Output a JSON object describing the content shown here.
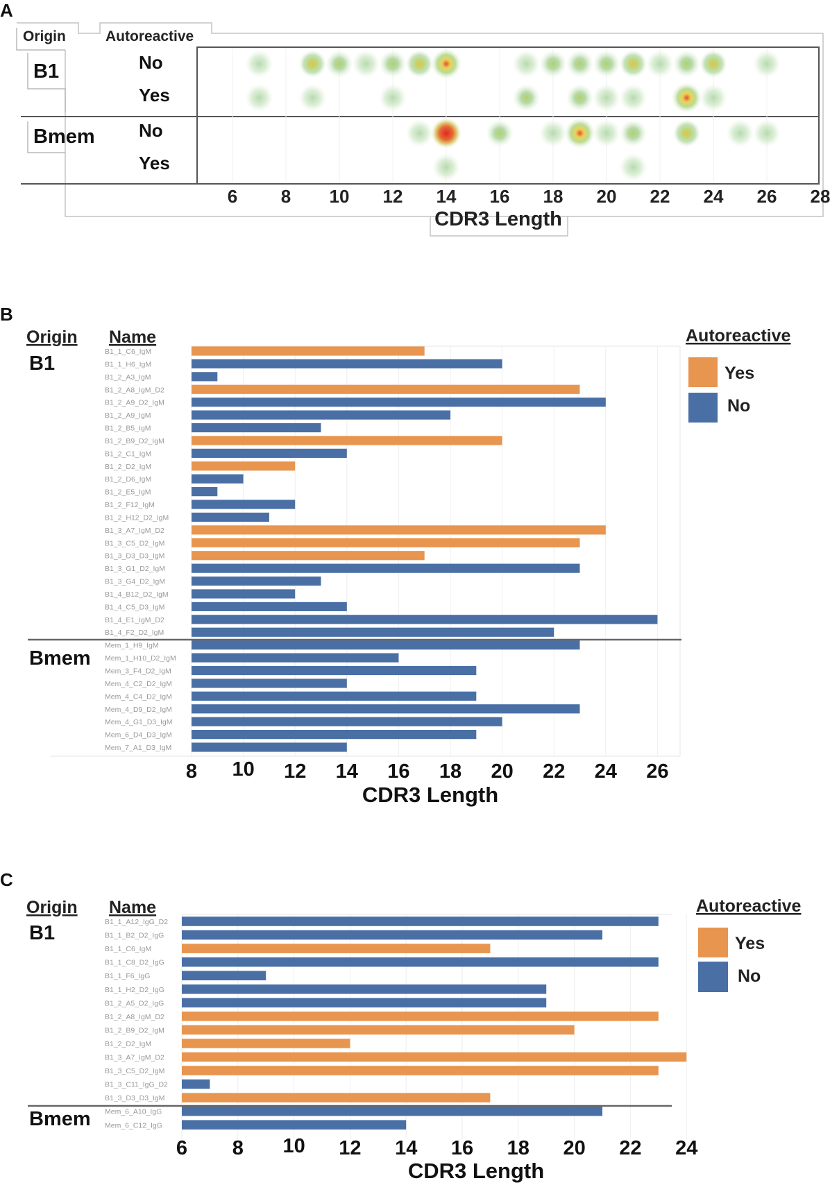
{
  "panels": {
    "A": {
      "letter": "A",
      "headers": {
        "origin": "Origin",
        "autoreactive": "Autoreactive"
      },
      "chart_data": {
        "type": "heatmap",
        "xlabel": "CDR3 Length",
        "xlim": [
          5,
          28
        ],
        "x_ticks": [
          6,
          8,
          10,
          12,
          14,
          16,
          18,
          20,
          22,
          24,
          26,
          28
        ],
        "groups": [
          {
            "origin": "B1",
            "rows": [
              {
                "label": "No",
                "x": [
                  7,
                  9,
                  10,
                  11,
                  12,
                  13,
                  14,
                  17,
                  18,
                  19,
                  20,
                  21,
                  22,
                  23,
                  24,
                  26
                ],
                "intensity": [
                  1,
                  3,
                  2,
                  1,
                  2,
                  3,
                  4,
                  1,
                  2,
                  2,
                  2,
                  3,
                  1,
                  2,
                  3,
                  1
                ]
              },
              {
                "label": "Yes",
                "x": [
                  7,
                  9,
                  12,
                  17,
                  19,
                  20,
                  21,
                  23,
                  24
                ],
                "intensity": [
                  1,
                  1,
                  1,
                  2,
                  2,
                  1,
                  1,
                  4,
                  1
                ]
              }
            ]
          },
          {
            "origin": "Bmem",
            "rows": [
              {
                "label": "No",
                "x": [
                  13,
                  14,
                  16,
                  18,
                  19,
                  20,
                  21,
                  23,
                  25,
                  26
                ],
                "intensity": [
                  1,
                  5,
                  2,
                  1,
                  4,
                  1,
                  2,
                  3,
                  1,
                  1
                ]
              },
              {
                "label": "Yes",
                "x": [
                  14,
                  21
                ],
                "intensity": [
                  1,
                  1
                ]
              }
            ]
          }
        ]
      }
    },
    "B": {
      "letter": "B",
      "headers": {
        "origin": "Origin",
        "name": "Name"
      },
      "legend": {
        "title": "Autoreactive",
        "yes": "Yes",
        "no": "No"
      },
      "colors": {
        "yes": "#E8954F",
        "no": "#4A6FA5"
      },
      "chart_data": {
        "type": "bar",
        "orientation": "horizontal",
        "xlabel": "CDR3 Length",
        "xlim": [
          8,
          27
        ],
        "x_ticks": [
          8,
          10,
          12,
          14,
          16,
          18,
          20,
          22,
          24,
          26
        ],
        "groups": [
          {
            "origin": "B1",
            "bars": [
              {
                "name": "B1_1_C6_IgM",
                "value": 17,
                "autoreactive": "Yes"
              },
              {
                "name": "B1_1_H6_IgM",
                "value": 20,
                "autoreactive": "No"
              },
              {
                "name": "B1_2_A3_IgM",
                "value": 9,
                "autoreactive": "No"
              },
              {
                "name": "B1_2_A8_IgM_D2",
                "value": 23,
                "autoreactive": "Yes"
              },
              {
                "name": "B1_2_A9_D2_IgM",
                "value": 24,
                "autoreactive": "No"
              },
              {
                "name": "B1_2_A9_IgM",
                "value": 18,
                "autoreactive": "No"
              },
              {
                "name": "B1_2_B5_IgM",
                "value": 13,
                "autoreactive": "No"
              },
              {
                "name": "B1_2_B9_D2_IgM",
                "value": 20,
                "autoreactive": "Yes"
              },
              {
                "name": "B1_2_C1_IgM",
                "value": 14,
                "autoreactive": "No"
              },
              {
                "name": "B1_2_D2_IgM",
                "value": 12,
                "autoreactive": "Yes"
              },
              {
                "name": "B1_2_D6_IgM",
                "value": 10,
                "autoreactive": "No"
              },
              {
                "name": "B1_2_E5_IgM",
                "value": 9,
                "autoreactive": "No"
              },
              {
                "name": "B1_2_F12_IgM",
                "value": 12,
                "autoreactive": "No"
              },
              {
                "name": "B1_2_H12_D2_IgM",
                "value": 11,
                "autoreactive": "No"
              },
              {
                "name": "B1_3_A7_IgM_D2",
                "value": 24,
                "autoreactive": "Yes"
              },
              {
                "name": "B1_3_C5_D2_IgM",
                "value": 23,
                "autoreactive": "Yes"
              },
              {
                "name": "B1_3_D3_D3_IgM",
                "value": 17,
                "autoreactive": "Yes"
              },
              {
                "name": "B1_3_G1_D2_IgM",
                "value": 23,
                "autoreactive": "No"
              },
              {
                "name": "B1_3_G4_D2_IgM",
                "value": 13,
                "autoreactive": "No"
              },
              {
                "name": "B1_4_B12_D2_IgM",
                "value": 12,
                "autoreactive": "No"
              },
              {
                "name": "B1_4_C5_D3_IgM",
                "value": 14,
                "autoreactive": "No"
              },
              {
                "name": "B1_4_E1_IgM_D2",
                "value": 26,
                "autoreactive": "No"
              },
              {
                "name": "B1_4_F2_D2_IgM",
                "value": 22,
                "autoreactive": "No"
              }
            ]
          },
          {
            "origin": "Bmem",
            "bars": [
              {
                "name": "Mem_1_H9_IgM",
                "value": 23,
                "autoreactive": "No"
              },
              {
                "name": "Mem_1_H10_D2_IgM",
                "value": 16,
                "autoreactive": "No"
              },
              {
                "name": "Mem_3_F4_D2_IgM",
                "value": 19,
                "autoreactive": "No"
              },
              {
                "name": "Mem_4_C2_D2_IgM",
                "value": 14,
                "autoreactive": "No"
              },
              {
                "name": "Mem_4_C4_D2_IgM",
                "value": 19,
                "autoreactive": "No"
              },
              {
                "name": "Mem_4_D9_D2_IgM",
                "value": 23,
                "autoreactive": "No"
              },
              {
                "name": "Mem_4_G1_D3_IgM",
                "value": 20,
                "autoreactive": "No"
              },
              {
                "name": "Mem_6_D4_D3_IgM",
                "value": 19,
                "autoreactive": "No"
              },
              {
                "name": "Mem_7_A1_D3_IgM",
                "value": 14,
                "autoreactive": "No"
              }
            ]
          }
        ]
      }
    },
    "C": {
      "letter": "C",
      "headers": {
        "origin": "Origin",
        "name": "Name"
      },
      "legend": {
        "title": "Autoreactive",
        "yes": "Yes",
        "no": "No"
      },
      "colors": {
        "yes": "#E8954F",
        "no": "#4A6FA5"
      },
      "chart_data": {
        "type": "bar",
        "orientation": "horizontal",
        "xlabel": "CDR3 Length",
        "xlim": [
          6,
          24
        ],
        "x_ticks": [
          6,
          8,
          10,
          12,
          14,
          16,
          18,
          20,
          22,
          24
        ],
        "groups": [
          {
            "origin": "B1",
            "bars": [
              {
                "name": "B1_1_A12_IgG_D2",
                "value": 23,
                "autoreactive": "No"
              },
              {
                "name": "B1_1_B2_D2_IgG",
                "value": 21,
                "autoreactive": "No"
              },
              {
                "name": "B1_1_C6_IgM",
                "value": 17,
                "autoreactive": "Yes"
              },
              {
                "name": "B1_1_C8_D2_IgG",
                "value": 23,
                "autoreactive": "No"
              },
              {
                "name": "B1_1_F6_IgG",
                "value": 9,
                "autoreactive": "No"
              },
              {
                "name": "B1_1_H2_D2_IgG",
                "value": 19,
                "autoreactive": "No"
              },
              {
                "name": "B1_2_A5_D2_IgG",
                "value": 19,
                "autoreactive": "No"
              },
              {
                "name": "B1_2_A8_IgM_D2",
                "value": 23,
                "autoreactive": "Yes"
              },
              {
                "name": "B1_2_B9_D2_IgM",
                "value": 20,
                "autoreactive": "Yes"
              },
              {
                "name": "B1_2_D2_IgM",
                "value": 12,
                "autoreactive": "Yes"
              },
              {
                "name": "B1_3_A7_IgM_D2",
                "value": 24,
                "autoreactive": "Yes"
              },
              {
                "name": "B1_3_C5_D2_IgM",
                "value": 23,
                "autoreactive": "Yes"
              },
              {
                "name": "B1_3_C11_IgG_D2",
                "value": 7,
                "autoreactive": "No"
              },
              {
                "name": "B1_3_D3_D3_IgM",
                "value": 17,
                "autoreactive": "Yes"
              }
            ]
          },
          {
            "origin": "Bmem",
            "bars": [
              {
                "name": "Mem_6_A10_IgG",
                "value": 21,
                "autoreactive": "No"
              },
              {
                "name": "Mem_6_C12_IgG",
                "value": 14,
                "autoreactive": "No"
              }
            ]
          }
        ]
      }
    }
  }
}
